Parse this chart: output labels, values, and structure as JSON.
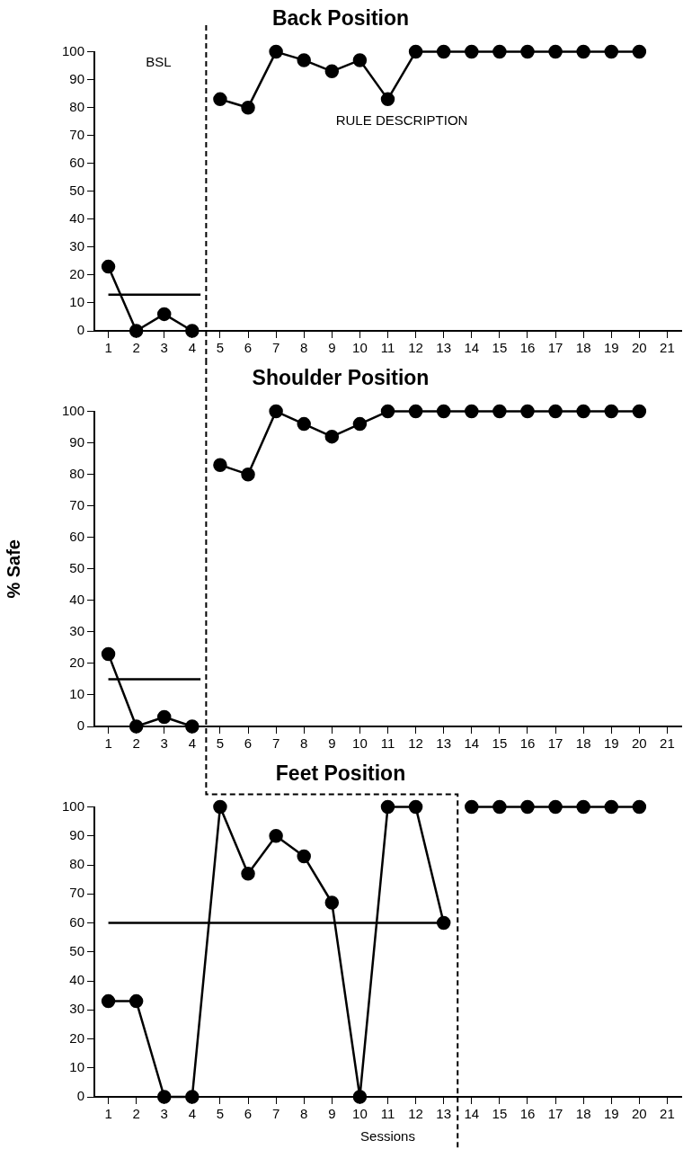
{
  "chart_data": [
    {
      "type": "line",
      "title": "Back Position",
      "xlim": [
        0.5,
        21.5
      ],
      "xticks": [
        1,
        2,
        3,
        4,
        5,
        6,
        7,
        8,
        9,
        10,
        11,
        12,
        13,
        14,
        15,
        16,
        17,
        18,
        19,
        20,
        21
      ],
      "ylim": [
        0,
        100
      ],
      "yticks": [
        0,
        10,
        20,
        30,
        40,
        50,
        60,
        70,
        80,
        90,
        100
      ],
      "marker": "circle",
      "line_style": "solid",
      "annotations": [
        "BSL",
        "RULE DESCRIPTION"
      ],
      "ref_lines": [
        {
          "axis": "x",
          "value": 4.5,
          "line_style": "dashed",
          "color": "#000000"
        }
      ],
      "series": [
        {
          "type": "line",
          "color": "#000000",
          "x": [
            1,
            2,
            3,
            4
          ],
          "values": [
            23,
            0,
            6,
            0
          ]
        },
        {
          "type": "line",
          "color": "#000000",
          "x": [
            5,
            6,
            7,
            8,
            9,
            10,
            11,
            12,
            13,
            14,
            15,
            16,
            17,
            18,
            19,
            20
          ],
          "values": [
            83,
            80,
            100,
            97,
            93,
            97,
            83,
            100,
            100,
            100,
            100,
            100,
            100,
            100,
            100,
            100
          ]
        },
        {
          "type": "line",
          "color": "#000000",
          "marker": "none",
          "x": [
            1,
            4.3
          ],
          "values": [
            13,
            13
          ]
        }
      ]
    },
    {
      "type": "line",
      "title": "Shoulder Position",
      "ylabel": "% Safe",
      "xlim": [
        0.5,
        21.5
      ],
      "xticks": [
        1,
        2,
        3,
        4,
        5,
        6,
        7,
        8,
        9,
        10,
        11,
        12,
        13,
        14,
        15,
        16,
        17,
        18,
        19,
        20,
        21
      ],
      "ylim": [
        0,
        100
      ],
      "yticks": [
        0,
        10,
        20,
        30,
        40,
        50,
        60,
        70,
        80,
        90,
        100
      ],
      "marker": "circle",
      "line_style": "solid",
      "ref_lines": [
        {
          "axis": "x",
          "value": 4.5,
          "line_style": "dashed",
          "color": "#000000"
        }
      ],
      "series": [
        {
          "type": "line",
          "color": "#000000",
          "x": [
            1,
            2,
            3,
            4
          ],
          "values": [
            23,
            0,
            3,
            0
          ]
        },
        {
          "type": "line",
          "color": "#000000",
          "x": [
            5,
            6,
            7,
            8,
            9,
            10,
            11,
            12,
            13,
            14,
            15,
            16,
            17,
            18,
            19,
            20
          ],
          "values": [
            83,
            80,
            100,
            96,
            92,
            96,
            100,
            100,
            100,
            100,
            100,
            100,
            100,
            100,
            100,
            100
          ]
        },
        {
          "type": "line",
          "color": "#000000",
          "marker": "none",
          "x": [
            1,
            4.3
          ],
          "values": [
            15,
            15
          ]
        }
      ]
    },
    {
      "type": "line",
      "title": "Feet Position",
      "xlabel": "Sessions",
      "xlim": [
        0.5,
        21.5
      ],
      "xticks": [
        1,
        2,
        3,
        4,
        5,
        6,
        7,
        8,
        9,
        10,
        11,
        12,
        13,
        14,
        15,
        16,
        17,
        18,
        19,
        20,
        21
      ],
      "ylim": [
        0,
        100
      ],
      "yticks": [
        0,
        10,
        20,
        30,
        40,
        50,
        60,
        70,
        80,
        90,
        100
      ],
      "marker": "circle",
      "line_style": "solid",
      "ref_lines": [
        {
          "axis": "x",
          "value": 13.5,
          "line_style": "dashed",
          "color": "#000000"
        }
      ],
      "series": [
        {
          "type": "line",
          "color": "#000000",
          "x": [
            1,
            2,
            3,
            4,
            5,
            6,
            7,
            8,
            9,
            10,
            11,
            12,
            13
          ],
          "values": [
            33,
            33,
            0,
            0,
            100,
            77,
            90,
            83,
            67,
            0,
            100,
            100,
            60
          ]
        },
        {
          "type": "line",
          "color": "#000000",
          "x": [
            14,
            15,
            16,
            17,
            18,
            19,
            20
          ],
          "values": [
            100,
            100,
            100,
            100,
            100,
            100,
            100
          ]
        },
        {
          "type": "line",
          "color": "#000000",
          "marker": "none",
          "x": [
            1,
            13
          ],
          "values": [
            60,
            60
          ]
        }
      ]
    }
  ]
}
